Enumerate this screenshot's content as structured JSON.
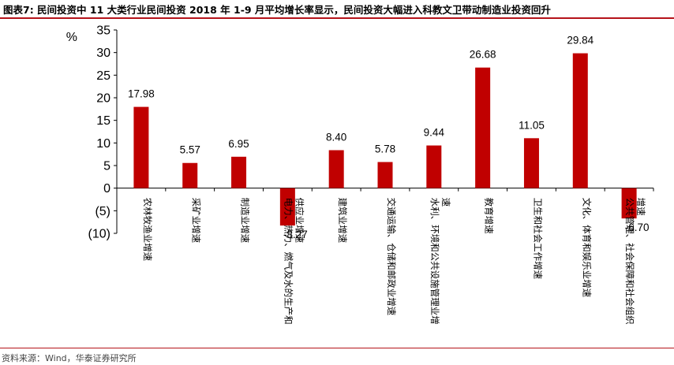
{
  "header": {
    "title": "图表7:  民间投资中 11 大类行业民间投资 2018 年 1-9 月平均增长率显示，民间投资大幅进入科教文卫带动制造业投资回升"
  },
  "footer": {
    "source": "资料来源：Wind，华泰证券研究所"
  },
  "chart_data": {
    "type": "bar",
    "title": "",
    "xlabel": "",
    "ylabel": "%",
    "ylim": [
      -10,
      35
    ],
    "yticks": [
      35,
      30,
      25,
      20,
      15,
      10,
      5,
      0,
      -5,
      -10
    ],
    "ytick_labels": [
      "35",
      "30",
      "25",
      "20",
      "15",
      "10",
      "5",
      "0",
      "(5)",
      "(10)"
    ],
    "grid": false,
    "bar_color": "#c00000",
    "categories": [
      "农林牧渔业增速",
      "采矿业增速",
      "制造业增速",
      "电力、热力、燃气及水的生产和供应业增速",
      "建筑业增速",
      "交通运输、仓储和邮政业增速",
      "水利、环境和公共设施管理业增速",
      "教育增速",
      "卫生和社会工作增速",
      "文化、体育和娱乐业增速",
      "公共管理、社会保障和社会组织增速"
    ],
    "values": [
      17.98,
      5.57,
      6.95,
      -8.27,
      8.4,
      5.78,
      9.44,
      26.68,
      11.05,
      29.84,
      -6.7
    ],
    "value_labels": [
      "17.98",
      "5.57",
      "6.95",
      "-8.27",
      "8.40",
      "5.78",
      "9.44",
      "26.68",
      "11.05",
      "29.84",
      "-6.70"
    ]
  }
}
